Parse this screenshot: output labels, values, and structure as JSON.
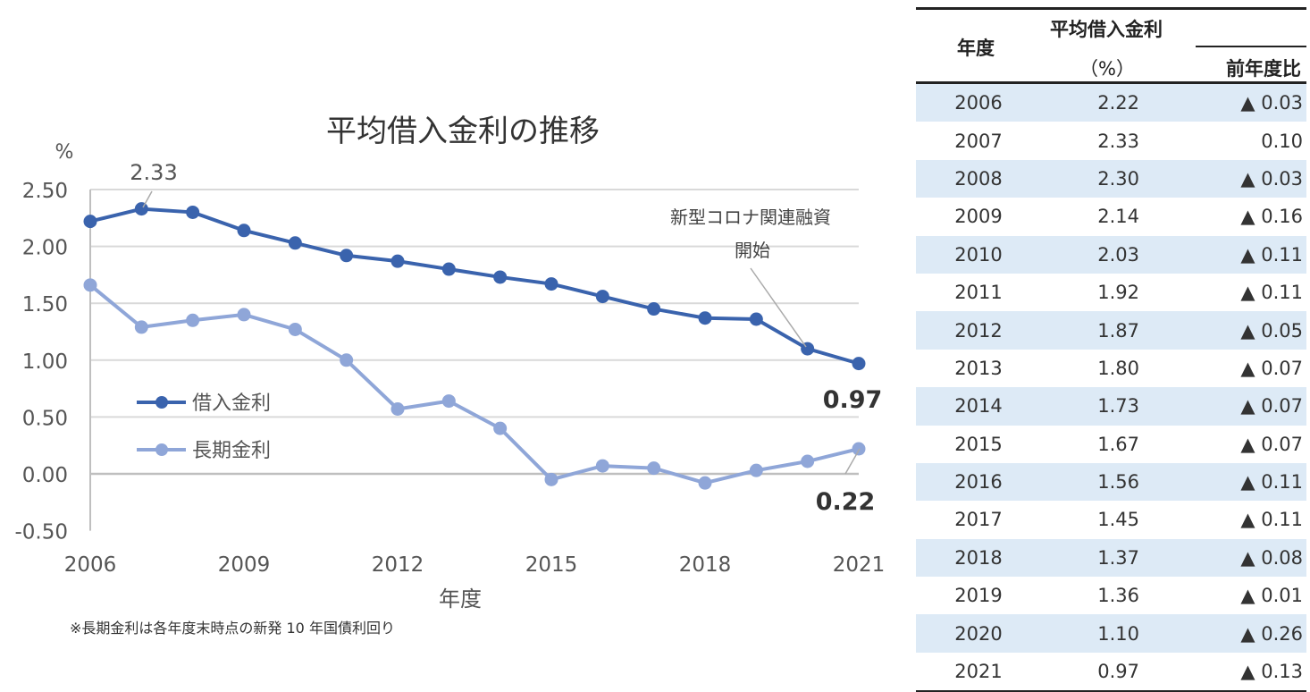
{
  "chart_data": {
    "type": "line",
    "title": "平均借入金利の推移",
    "ylabel": "%",
    "xlabel": "年度",
    "x": [
      2006,
      2007,
      2008,
      2009,
      2010,
      2011,
      2012,
      2013,
      2014,
      2015,
      2016,
      2017,
      2018,
      2019,
      2020,
      2021
    ],
    "xticks": [
      "2006",
      "2009",
      "2012",
      "2015",
      "2018",
      "2021"
    ],
    "yticks": [
      "2.50",
      "2.00",
      "1.50",
      "1.00",
      "0.50",
      "0.00",
      "-0.50"
    ],
    "ylim": [
      -0.5,
      2.5
    ],
    "grid": true,
    "legend_placement": "center-left",
    "series": [
      {
        "name": "借入金利",
        "color": "#3a63ad",
        "values": [
          2.22,
          2.33,
          2.3,
          2.14,
          2.03,
          1.92,
          1.87,
          1.8,
          1.73,
          1.67,
          1.56,
          1.45,
          1.37,
          1.36,
          1.1,
          0.97
        ]
      },
      {
        "name": "長期金利",
        "color": "#8fa6d8",
        "values": [
          1.66,
          1.29,
          1.35,
          1.4,
          1.27,
          1.0,
          0.57,
          0.64,
          0.4,
          -0.05,
          0.07,
          0.05,
          -0.08,
          0.03,
          0.11,
          0.22
        ]
      }
    ],
    "annotations": {
      "peak": "2.33",
      "end_borrow": "0.97",
      "end_long": "0.22",
      "covid_line1": "新型コロナ関連融資",
      "covid_line2": "開始"
    },
    "footnote": "※長期金利は各年度末時点の新発 10 年国債利回り"
  },
  "table": {
    "header": {
      "year": "年度",
      "rate": "平均借入金利",
      "unit": "（%）",
      "diff": "前年度比"
    },
    "rows": [
      {
        "year": "2006",
        "rate": "2.22",
        "diff": "▲ 0.03"
      },
      {
        "year": "2007",
        "rate": "2.33",
        "diff": "0.10"
      },
      {
        "year": "2008",
        "rate": "2.30",
        "diff": "▲ 0.03"
      },
      {
        "year": "2009",
        "rate": "2.14",
        "diff": "▲ 0.16"
      },
      {
        "year": "2010",
        "rate": "2.03",
        "diff": "▲ 0.11"
      },
      {
        "year": "2011",
        "rate": "1.92",
        "diff": "▲ 0.11"
      },
      {
        "year": "2012",
        "rate": "1.87",
        "diff": "▲ 0.05"
      },
      {
        "year": "2013",
        "rate": "1.80",
        "diff": "▲ 0.07"
      },
      {
        "year": "2014",
        "rate": "1.73",
        "diff": "▲ 0.07"
      },
      {
        "year": "2015",
        "rate": "1.67",
        "diff": "▲ 0.07"
      },
      {
        "year": "2016",
        "rate": "1.56",
        "diff": "▲ 0.11"
      },
      {
        "year": "2017",
        "rate": "1.45",
        "diff": "▲ 0.11"
      },
      {
        "year": "2018",
        "rate": "1.37",
        "diff": "▲ 0.08"
      },
      {
        "year": "2019",
        "rate": "1.36",
        "diff": "▲ 0.01"
      },
      {
        "year": "2020",
        "rate": "1.10",
        "diff": "▲ 0.26"
      },
      {
        "year": "2021",
        "rate": "0.97",
        "diff": "▲ 0.13"
      }
    ]
  }
}
